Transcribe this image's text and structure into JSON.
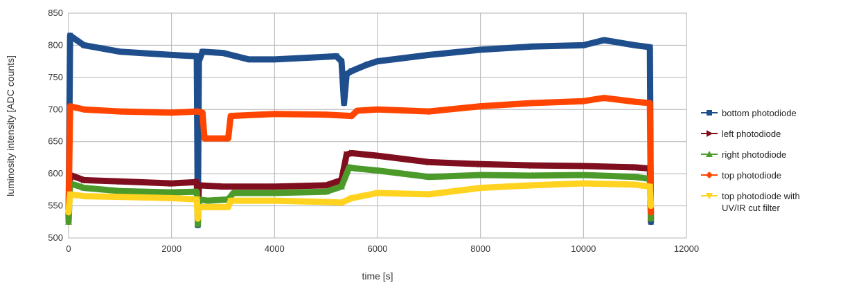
{
  "chart_data": {
    "type": "line",
    "title": "",
    "xlabel": "time [s]",
    "ylabel": "luminosity intensity [ADC counts]",
    "xlim": [
      0,
      12000
    ],
    "ylim": [
      500,
      850
    ],
    "xticks": [
      0,
      2000,
      4000,
      6000,
      8000,
      10000,
      12000
    ],
    "yticks": [
      500,
      550,
      600,
      650,
      700,
      750,
      800,
      850
    ],
    "grid": true,
    "legend_position": "right",
    "series": [
      {
        "name": "bottom photodiode",
        "color": "#1f4e8c",
        "marker": "square",
        "points": [
          [
            0,
            530
          ],
          [
            30,
            815
          ],
          [
            300,
            800
          ],
          [
            1000,
            790
          ],
          [
            2000,
            785
          ],
          [
            2490,
            783
          ],
          [
            2510,
            520
          ],
          [
            2530,
            775
          ],
          [
            2600,
            790
          ],
          [
            3000,
            788
          ],
          [
            3500,
            778
          ],
          [
            4000,
            778
          ],
          [
            5000,
            782
          ],
          [
            5200,
            783
          ],
          [
            5300,
            775
          ],
          [
            5350,
            710
          ],
          [
            5400,
            755
          ],
          [
            5500,
            760
          ],
          [
            5800,
            770
          ],
          [
            6000,
            775
          ],
          [
            7000,
            785
          ],
          [
            8000,
            793
          ],
          [
            9000,
            798
          ],
          [
            10000,
            800
          ],
          [
            10400,
            808
          ],
          [
            11000,
            800
          ],
          [
            11290,
            797
          ],
          [
            11310,
            525
          ]
        ]
      },
      {
        "name": "left photodiode",
        "color": "#7f0f1e",
        "marker": "triangle-right",
        "points": [
          [
            0,
            530
          ],
          [
            30,
            598
          ],
          [
            300,
            590
          ],
          [
            1000,
            588
          ],
          [
            2000,
            585
          ],
          [
            2490,
            587
          ],
          [
            2510,
            527
          ],
          [
            2530,
            582
          ],
          [
            3000,
            580
          ],
          [
            4000,
            580
          ],
          [
            5000,
            582
          ],
          [
            5300,
            590
          ],
          [
            5400,
            630
          ],
          [
            5500,
            632
          ],
          [
            6000,
            628
          ],
          [
            7000,
            618
          ],
          [
            8000,
            615
          ],
          [
            9000,
            613
          ],
          [
            10000,
            612
          ],
          [
            11000,
            610
          ],
          [
            11290,
            608
          ],
          [
            11310,
            530
          ]
        ]
      },
      {
        "name": "right photodiode",
        "color": "#4c9a2a",
        "marker": "triangle-up",
        "points": [
          [
            0,
            525
          ],
          [
            30,
            585
          ],
          [
            300,
            578
          ],
          [
            1000,
            573
          ],
          [
            2000,
            571
          ],
          [
            2490,
            572
          ],
          [
            2510,
            522
          ],
          [
            2530,
            560
          ],
          [
            2700,
            558
          ],
          [
            3100,
            560
          ],
          [
            3200,
            570
          ],
          [
            4000,
            570
          ],
          [
            5000,
            572
          ],
          [
            5300,
            580
          ],
          [
            5450,
            610
          ],
          [
            5600,
            608
          ],
          [
            6000,
            605
          ],
          [
            7000,
            595
          ],
          [
            8000,
            598
          ],
          [
            9000,
            597
          ],
          [
            10000,
            598
          ],
          [
            11000,
            595
          ],
          [
            11290,
            592
          ],
          [
            11310,
            530
          ]
        ]
      },
      {
        "name": "top photodiode",
        "color": "#ff4500",
        "marker": "diamond",
        "points": [
          [
            0,
            540
          ],
          [
            30,
            705
          ],
          [
            300,
            700
          ],
          [
            1000,
            697
          ],
          [
            2000,
            695
          ],
          [
            2500,
            697
          ],
          [
            2600,
            695
          ],
          [
            2640,
            655
          ],
          [
            3100,
            655
          ],
          [
            3150,
            690
          ],
          [
            4000,
            693
          ],
          [
            5000,
            692
          ],
          [
            5500,
            690
          ],
          [
            5600,
            698
          ],
          [
            6000,
            700
          ],
          [
            7000,
            697
          ],
          [
            8000,
            705
          ],
          [
            9000,
            710
          ],
          [
            10000,
            713
          ],
          [
            10400,
            718
          ],
          [
            11000,
            712
          ],
          [
            11290,
            710
          ],
          [
            11310,
            540
          ]
        ]
      },
      {
        "name": "top photodiode with UV/IR cut filter",
        "color": "#ffd320",
        "marker": "triangle-down",
        "points": [
          [
            0,
            540
          ],
          [
            30,
            568
          ],
          [
            300,
            565
          ],
          [
            1000,
            564
          ],
          [
            2000,
            562
          ],
          [
            2490,
            560
          ],
          [
            2510,
            530
          ],
          [
            2530,
            548
          ],
          [
            3100,
            548
          ],
          [
            3150,
            558
          ],
          [
            4000,
            558
          ],
          [
            5000,
            556
          ],
          [
            5300,
            555
          ],
          [
            5500,
            562
          ],
          [
            6000,
            570
          ],
          [
            7000,
            568
          ],
          [
            8000,
            578
          ],
          [
            9000,
            582
          ],
          [
            10000,
            585
          ],
          [
            11000,
            583
          ],
          [
            11290,
            580
          ],
          [
            11310,
            550
          ]
        ]
      }
    ]
  },
  "legend": {
    "items": [
      {
        "lines": [
          "bottom photodiode"
        ]
      },
      {
        "lines": [
          "left photodiode"
        ]
      },
      {
        "lines": [
          "right photodiode"
        ]
      },
      {
        "lines": [
          "top photodiode"
        ]
      },
      {
        "lines": [
          "top photodiode with",
          "UV/IR cut filter"
        ]
      }
    ]
  }
}
